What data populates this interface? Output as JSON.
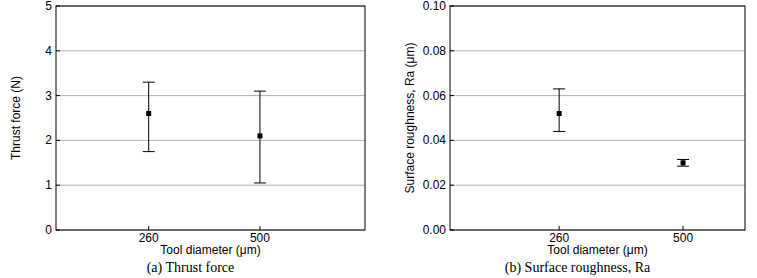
{
  "chart_data": [
    {
      "type": "scatter",
      "title": "(a) Thrust force",
      "x_label": "Tool diameter (μm)",
      "y_label": "Thrust force (N)",
      "categories": [
        "260",
        "500"
      ],
      "values": [
        2.6,
        2.1
      ],
      "error_minus": [
        0.85,
        1.05
      ],
      "error_plus": [
        0.7,
        1.0
      ],
      "color": "#000000",
      "marker": "square",
      "ylim": [
        0,
        5
      ],
      "yticks": [
        0,
        1,
        2,
        3,
        4,
        5
      ],
      "grid": true
    },
    {
      "type": "scatter",
      "title": "(b) Surface roughness, Ra",
      "x_label": "Tool diameter (μm)",
      "y_label": "Surface roughness, Ra (μm)",
      "categories": [
        "260",
        "500"
      ],
      "values": [
        0.052,
        0.03
      ],
      "error_minus": [
        0.008,
        0.0015
      ],
      "error_plus": [
        0.011,
        0.0015
      ],
      "color": "#000000",
      "marker": "square",
      "ylim": [
        0,
        0.1
      ],
      "yticks": [
        {
          "value": 0,
          "label": "0.00"
        },
        0.02,
        0.04,
        0.06,
        0.08,
        {
          "value": 0.1,
          "label": "0.10"
        }
      ],
      "grid": true
    }
  ]
}
